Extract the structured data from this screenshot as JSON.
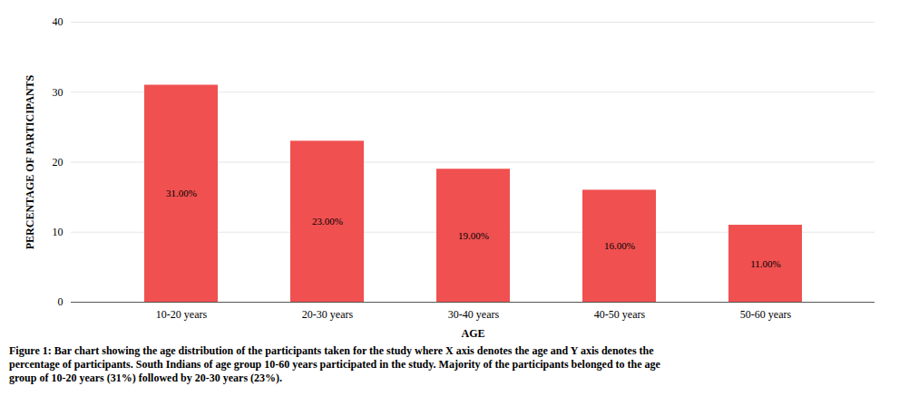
{
  "chart_data": {
    "type": "bar",
    "categories": [
      "10-20 years",
      "20-30 years",
      "30-40 years",
      "40-50 years",
      "50-60 years"
    ],
    "values": [
      31,
      23,
      19,
      16,
      11
    ],
    "value_labels": [
      "31.00%",
      "23.00%",
      "19.00%",
      "16.00%",
      "11.00%"
    ],
    "data_labels": true,
    "color": "#f05050",
    "xlabel": "AGE",
    "ylabel": "PERCENTAGE OF PARTICIPANTS",
    "ylim": [
      0,
      40
    ],
    "yticks": [
      0,
      10,
      20,
      30,
      40
    ],
    "grid": true,
    "caption": [
      "Figure 1: Bar chart showing the age distribution of the participants taken for the study where X axis denotes the age and Y axis denotes the",
      "percentage of participants. South Indians of age group 10-60 years participated in the study. Majority of the participants belonged to the age",
      "group of 10-20 years (31%) followed by 20-30 years (23%)."
    ]
  }
}
